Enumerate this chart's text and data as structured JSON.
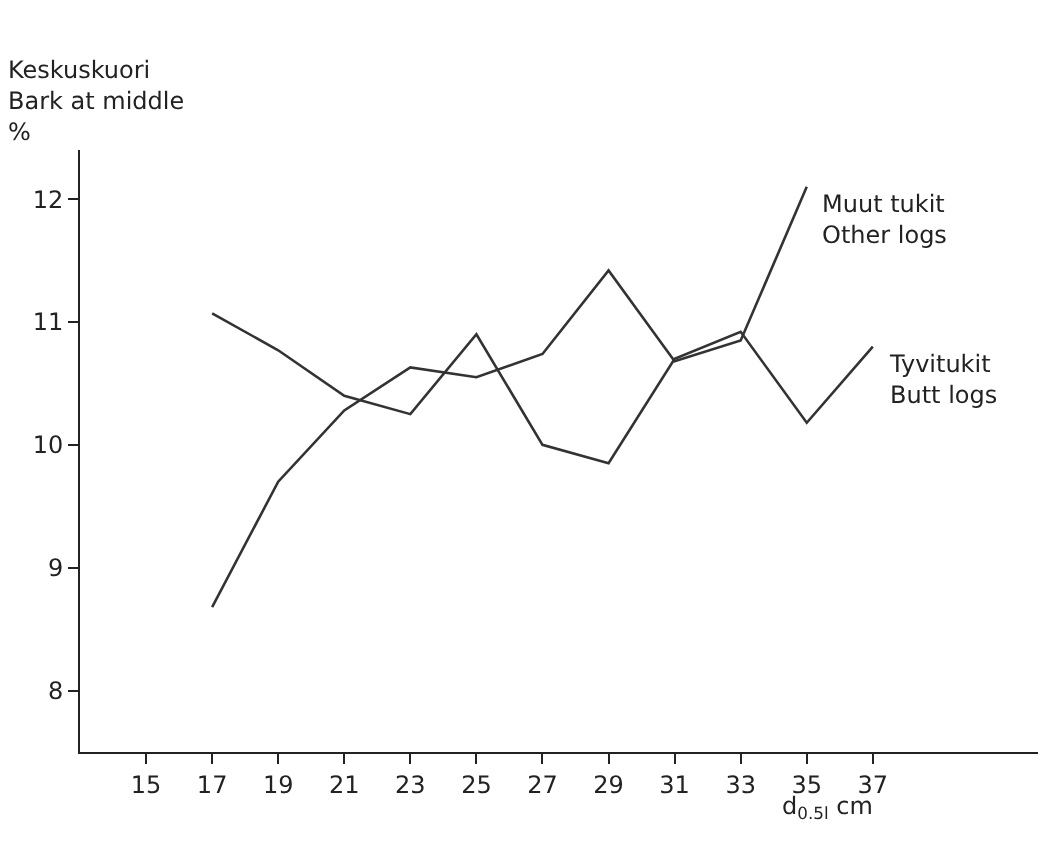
{
  "chart_data": {
    "type": "line",
    "ylabel": "Keskuskuori\nBark at middle\n%",
    "xlabel": "d$_{0.5l}$ cm",
    "x": [
      17,
      19,
      21,
      23,
      25,
      27,
      29,
      31,
      33,
      35,
      37
    ],
    "series": [
      {
        "name": "Muut tukit\nOther logs",
        "color": "#333333",
        "values": [
          8.68,
          9.7,
          10.28,
          10.63,
          10.55,
          10.74,
          11.42,
          10.68,
          10.85,
          12.1,
          null
        ]
      },
      {
        "name": "Tyvitukit\nButt logs",
        "color": "#333333",
        "values": [
          11.07,
          10.77,
          10.4,
          10.25,
          10.9,
          10.0,
          9.85,
          10.7,
          10.92,
          10.18,
          10.8
        ]
      }
    ],
    "xlim": [
      13,
      42
    ],
    "xticks": [
      15,
      17,
      19,
      21,
      23,
      25,
      27,
      29,
      31,
      33,
      35,
      37
    ],
    "ylim": [
      7.5,
      12.4
    ],
    "yticks": [
      8,
      9,
      10,
      11,
      12
    ],
    "legend": false,
    "marker": "none",
    "line_style": "solid"
  }
}
